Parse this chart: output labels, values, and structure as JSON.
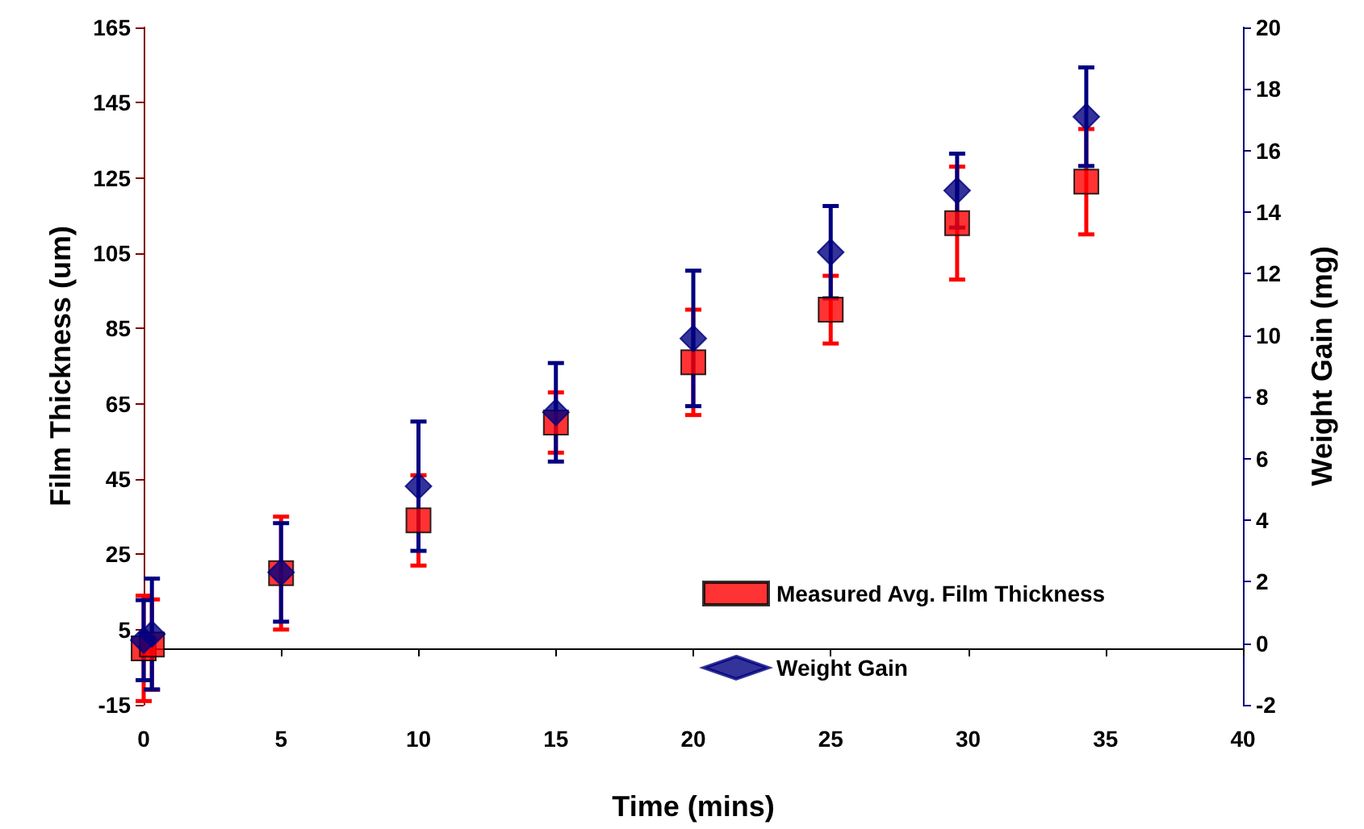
{
  "chart_data": {
    "type": "scatter",
    "xlabel": "Time (mins)",
    "ylabel": "Film Thickness (um)",
    "y2label": "Weight Gain (mg)",
    "xlim": [
      0,
      40
    ],
    "xticks": [
      0,
      5,
      10,
      15,
      20,
      25,
      30,
      35,
      40
    ],
    "ylim": [
      -15,
      165
    ],
    "yticks": [
      -15,
      5,
      25,
      45,
      65,
      85,
      105,
      125,
      145,
      165
    ],
    "y2lim": [
      -2,
      20
    ],
    "y2ticks": [
      -2,
      0,
      2,
      4,
      6,
      8,
      10,
      12,
      14,
      16,
      18,
      20
    ],
    "grid": false,
    "legend": "bottom right",
    "series": [
      {
        "name": "Measured Avg. Film Thickness",
        "color": "#ff0000",
        "marker": "square",
        "x": [
          0,
          0.3,
          5,
          10,
          15,
          20,
          25,
          29.6,
          34.3
        ],
        "values": [
          0,
          1,
          20,
          34,
          60,
          76,
          90,
          113,
          124
        ],
        "errors": [
          14,
          12,
          15,
          12,
          8,
          14,
          9,
          15,
          14
        ]
      },
      {
        "name": "Weight Gain",
        "color": "#000080",
        "marker": "diamond",
        "axis": "y2",
        "x": [
          0,
          0.3,
          5,
          10,
          15,
          20,
          25,
          29.6,
          34.3
        ],
        "values": [
          0.1,
          0.3,
          2.3,
          5.1,
          7.5,
          9.9,
          12.7,
          14.7,
          17.1
        ],
        "errors": [
          1.3,
          1.8,
          1.6,
          2.1,
          1.6,
          2.2,
          1.5,
          1.2,
          1.6
        ]
      }
    ]
  }
}
